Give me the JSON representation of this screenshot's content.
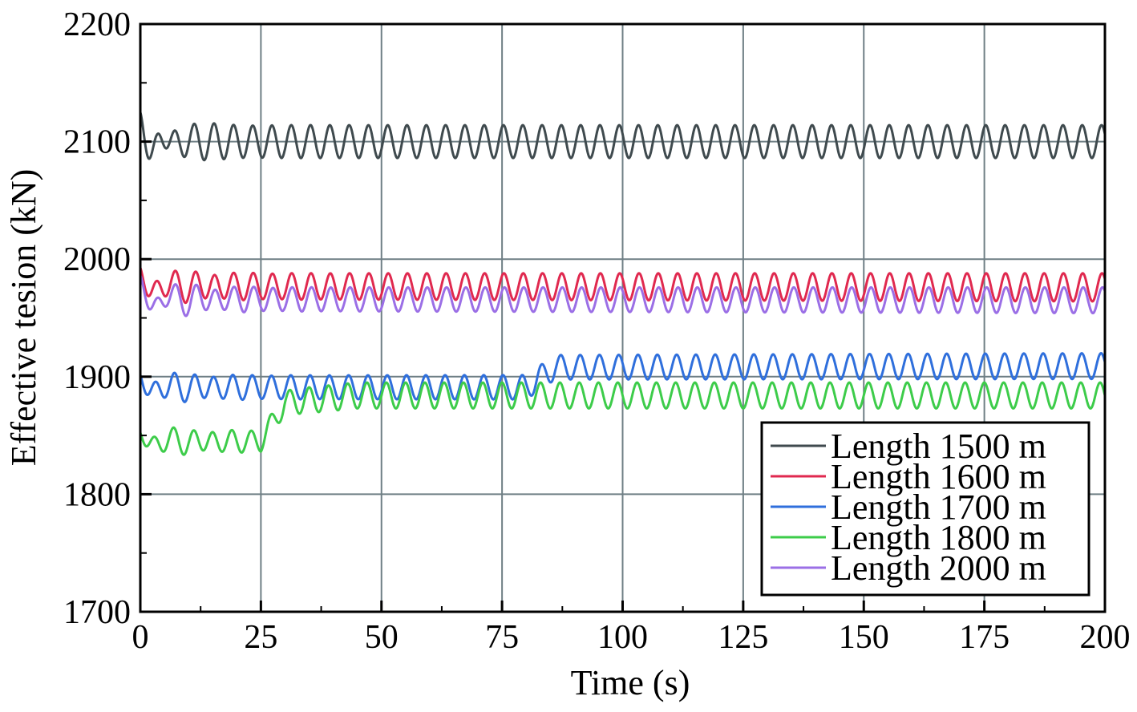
{
  "chart_data": {
    "type": "line",
    "title": "",
    "xlabel": "Time (s)",
    "ylabel": "Effective tesion (kN)",
    "xlim": [
      0,
      200
    ],
    "ylim": [
      1700,
      2200
    ],
    "xticks": [
      "0",
      "25",
      "50",
      "75",
      "100",
      "125",
      "150",
      "175",
      "200"
    ],
    "yticks": [
      "1700",
      "1800",
      "1900",
      "2000",
      "2100",
      "2200"
    ],
    "grid": true,
    "legend_position": "bottom-right",
    "oscillation_period_s": 4,
    "series": [
      {
        "name": "Length 1500 m",
        "color": "#3f4a4e",
        "phase_s": 3.3,
        "mean": [
          [
            0,
            2100
          ],
          [
            200,
            2100
          ]
        ],
        "amplitude": [
          [
            0,
            14
          ],
          [
            200,
            14
          ]
        ],
        "transient": {
          "amplitude": 20,
          "decay_s": 6,
          "period_s": 5
        }
      },
      {
        "name": "Length 1600 m",
        "color": "#e0294f",
        "phase_s": 3.4,
        "mean": [
          [
            0,
            1977
          ],
          [
            200,
            1976
          ]
        ],
        "amplitude": [
          [
            0,
            11
          ],
          [
            200,
            12
          ]
        ],
        "transient": {
          "amplitude": 10,
          "decay_s": 8,
          "period_s": 6
        }
      },
      {
        "name": "Length 1700 m",
        "color": "#2f6fdc",
        "phase_s": 3.2,
        "mean": [
          [
            0,
            1891
          ],
          [
            80,
            1891
          ],
          [
            86,
            1908
          ],
          [
            200,
            1909
          ]
        ],
        "amplitude": [
          [
            0,
            10
          ],
          [
            200,
            11
          ]
        ],
        "transient": {
          "amplitude": 8,
          "decay_s": 8,
          "period_s": 6
        }
      },
      {
        "name": "Length 1800 m",
        "color": "#3dcc4a",
        "phase_s": 3.0,
        "mean": [
          [
            0,
            1845
          ],
          [
            25,
            1845
          ],
          [
            30,
            1878
          ],
          [
            45,
            1884
          ],
          [
            200,
            1884
          ]
        ],
        "amplitude": [
          [
            0,
            9
          ],
          [
            25,
            9
          ],
          [
            35,
            11
          ],
          [
            200,
            11
          ]
        ],
        "transient": {
          "amplitude": 8,
          "decay_s": 8,
          "period_s": 6
        }
      },
      {
        "name": "Length 2000 m",
        "color": "#9b6fe6",
        "phase_s": 3.5,
        "mean": [
          [
            0,
            1966
          ],
          [
            200,
            1965
          ]
        ],
        "amplitude": [
          [
            0,
            10
          ],
          [
            200,
            11
          ]
        ],
        "transient": {
          "amplitude": 14,
          "decay_s": 8,
          "period_s": 6
        }
      }
    ]
  }
}
